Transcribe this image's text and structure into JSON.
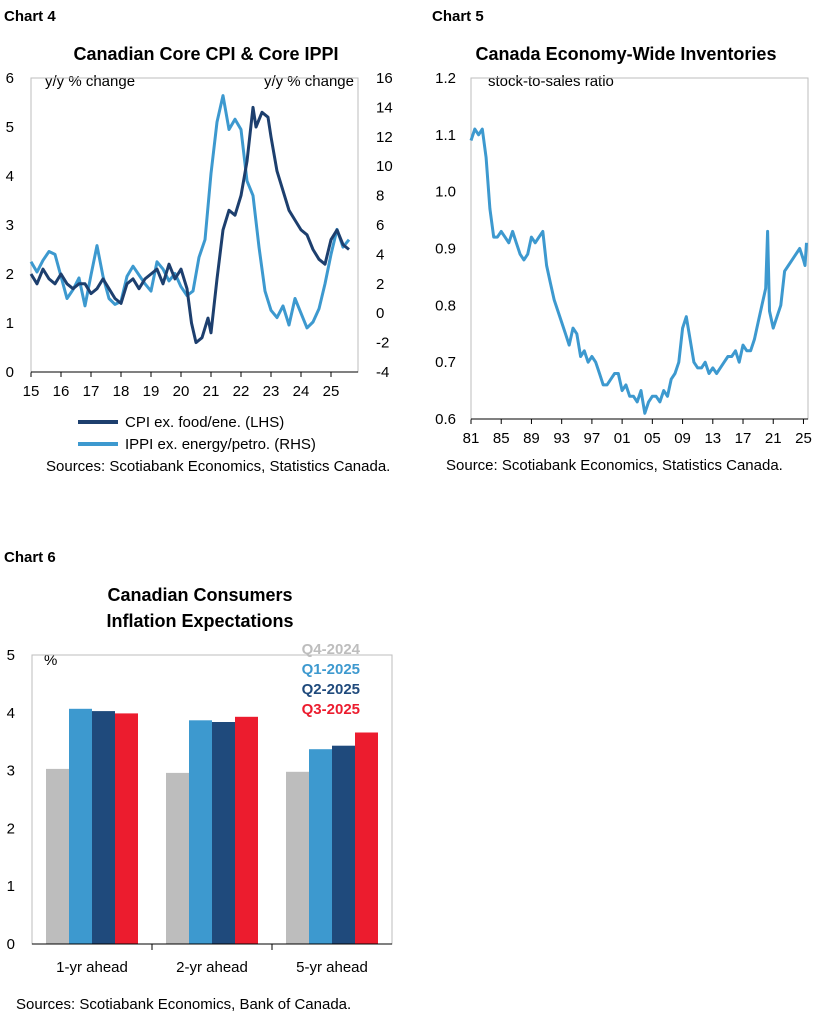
{
  "chart_data": [
    {
      "chart_label": "Chart 4",
      "type": "line",
      "title": "Canadian Core CPI & Core IPPI",
      "ylabel_left": "y/y % change",
      "ylabel_right": "y/y % change",
      "ylim_left": [
        0,
        6
      ],
      "ylim_right": [
        -4,
        16
      ],
      "yticks_left": [
        "0",
        "1",
        "2",
        "3",
        "4",
        "5",
        "6"
      ],
      "yticks_right": [
        "-4",
        "-2",
        "0",
        "2",
        "4",
        "6",
        "8",
        "10",
        "12",
        "14",
        "16"
      ],
      "xlim": [
        2015,
        2025.9
      ],
      "xtick_labels": [
        "15",
        "16",
        "17",
        "18",
        "19",
        "20",
        "21",
        "22",
        "23",
        "24",
        "25"
      ],
      "grid": false,
      "legend_position": "bottom",
      "series": [
        {
          "name": "CPI ex. food/ene. (LHS)",
          "color": "#1d3f6e",
          "axis": "left",
          "x": [
            2015.0,
            2015.2,
            2015.4,
            2015.6,
            2015.8,
            2016.0,
            2016.2,
            2016.4,
            2016.6,
            2016.8,
            2017.0,
            2017.2,
            2017.4,
            2017.6,
            2017.8,
            2018.0,
            2018.2,
            2018.4,
            2018.6,
            2018.8,
            2019.0,
            2019.2,
            2019.4,
            2019.6,
            2019.8,
            2020.0,
            2020.2,
            2020.35,
            2020.5,
            2020.7,
            2020.9,
            2021.0,
            2021.2,
            2021.4,
            2021.6,
            2021.8,
            2022.0,
            2022.2,
            2022.4,
            2022.5,
            2022.7,
            2022.9,
            2023.0,
            2023.2,
            2023.4,
            2023.6,
            2023.8,
            2024.0,
            2024.2,
            2024.4,
            2024.6,
            2024.8,
            2025.0,
            2025.2,
            2025.4,
            2025.6
          ],
          "values": [
            2.0,
            1.8,
            2.1,
            1.9,
            1.8,
            2.0,
            1.8,
            1.7,
            1.8,
            1.8,
            1.6,
            1.7,
            1.9,
            1.7,
            1.5,
            1.4,
            1.8,
            1.9,
            1.7,
            1.9,
            2.0,
            2.1,
            1.8,
            2.2,
            1.9,
            2.1,
            1.7,
            1.0,
            0.6,
            0.7,
            1.1,
            0.8,
            1.9,
            2.9,
            3.3,
            3.2,
            3.6,
            4.3,
            5.4,
            5.0,
            5.3,
            5.2,
            4.8,
            4.1,
            3.7,
            3.3,
            3.1,
            2.9,
            2.8,
            2.5,
            2.3,
            2.2,
            2.7,
            2.9,
            2.6,
            2.5
          ]
        },
        {
          "name": "IPPI ex. energy/petro. (RHS)",
          "color": "#3d99cf",
          "axis": "right",
          "x": [
            2015.0,
            2015.2,
            2015.4,
            2015.6,
            2015.8,
            2016.0,
            2016.2,
            2016.4,
            2016.6,
            2016.8,
            2017.0,
            2017.2,
            2017.4,
            2017.6,
            2017.8,
            2018.0,
            2018.2,
            2018.4,
            2018.6,
            2018.8,
            2019.0,
            2019.2,
            2019.4,
            2019.6,
            2019.8,
            2020.0,
            2020.2,
            2020.4,
            2020.6,
            2020.8,
            2021.0,
            2021.2,
            2021.4,
            2021.6,
            2021.8,
            2022.0,
            2022.2,
            2022.4,
            2022.6,
            2022.8,
            2023.0,
            2023.2,
            2023.4,
            2023.6,
            2023.8,
            2024.0,
            2024.2,
            2024.4,
            2024.6,
            2024.8,
            2025.0,
            2025.2,
            2025.4,
            2025.6
          ],
          "values": [
            3.5,
            2.8,
            3.6,
            4.2,
            4.0,
            2.5,
            1.0,
            1.6,
            2.4,
            0.5,
            2.6,
            4.6,
            2.5,
            1.0,
            0.6,
            0.8,
            2.5,
            3.2,
            2.6,
            2.0,
            1.5,
            3.5,
            3.0,
            2.2,
            2.7,
            1.8,
            1.2,
            1.5,
            3.8,
            5.0,
            9.5,
            13.0,
            14.8,
            12.5,
            13.2,
            12.5,
            9.0,
            8.0,
            4.5,
            1.5,
            0.2,
            -0.3,
            0.5,
            -0.8,
            1.0,
            0.0,
            -1.0,
            -0.6,
            0.3,
            2.0,
            4.0,
            5.7,
            4.5,
            5.0
          ]
        }
      ],
      "source": "Sources: Scotiabank Economics, Statistics Canada."
    },
    {
      "chart_label": "Chart 5",
      "type": "line",
      "title": "Canada Economy-Wide Inventories",
      "ylabel": "stock-to-sales ratio",
      "ylim": [
        0.6,
        1.2
      ],
      "yticks": [
        "0.6",
        "0.7",
        "0.8",
        "0.9",
        "1.0",
        "1.1",
        "1.2"
      ],
      "xlim": [
        1981,
        2025.6
      ],
      "xtick_labels": [
        "81",
        "85",
        "89",
        "93",
        "97",
        "01",
        "05",
        "09",
        "13",
        "17",
        "21",
        "25"
      ],
      "grid": false,
      "series": [
        {
          "name": "",
          "color": "#3d99cf",
          "x": [
            1981.0,
            1981.5,
            1982.0,
            1982.5,
            1983.0,
            1983.5,
            1984.0,
            1984.5,
            1985.0,
            1985.5,
            1986.0,
            1986.5,
            1987.0,
            1987.5,
            1988.0,
            1988.5,
            1989.0,
            1989.5,
            1990.0,
            1990.5,
            1991.0,
            1991.5,
            1992.0,
            1992.5,
            1993.0,
            1993.5,
            1994.0,
            1994.5,
            1995.0,
            1995.5,
            1996.0,
            1996.5,
            1997.0,
            1997.5,
            1998.0,
            1998.5,
            1999.0,
            1999.5,
            2000.0,
            2000.5,
            2001.0,
            2001.5,
            2002.0,
            2002.5,
            2003.0,
            2003.5,
            2004.0,
            2004.5,
            2005.0,
            2005.5,
            2006.0,
            2006.5,
            2007.0,
            2007.5,
            2008.0,
            2008.5,
            2009.0,
            2009.5,
            2010.0,
            2010.5,
            2011.0,
            2011.5,
            2012.0,
            2012.5,
            2013.0,
            2013.5,
            2014.0,
            2014.5,
            2015.0,
            2015.5,
            2016.0,
            2016.5,
            2017.0,
            2017.5,
            2018.0,
            2018.5,
            2019.0,
            2019.5,
            2020.0,
            2020.25,
            2020.5,
            2021.0,
            2021.5,
            2022.0,
            2022.5,
            2023.0,
            2023.5,
            2024.0,
            2024.5,
            2025.0,
            2025.2,
            2025.4
          ],
          "values": [
            1.09,
            1.11,
            1.1,
            1.11,
            1.06,
            0.97,
            0.92,
            0.92,
            0.93,
            0.92,
            0.91,
            0.93,
            0.91,
            0.89,
            0.88,
            0.89,
            0.92,
            0.91,
            0.92,
            0.93,
            0.87,
            0.84,
            0.81,
            0.79,
            0.77,
            0.75,
            0.73,
            0.76,
            0.75,
            0.71,
            0.72,
            0.7,
            0.71,
            0.7,
            0.68,
            0.66,
            0.66,
            0.67,
            0.68,
            0.68,
            0.65,
            0.66,
            0.64,
            0.64,
            0.63,
            0.65,
            0.61,
            0.63,
            0.64,
            0.64,
            0.63,
            0.65,
            0.64,
            0.67,
            0.68,
            0.7,
            0.76,
            0.78,
            0.74,
            0.7,
            0.69,
            0.69,
            0.7,
            0.68,
            0.69,
            0.68,
            0.69,
            0.7,
            0.71,
            0.71,
            0.72,
            0.7,
            0.73,
            0.72,
            0.72,
            0.74,
            0.77,
            0.8,
            0.83,
            0.93,
            0.79,
            0.76,
            0.78,
            0.8,
            0.86,
            0.87,
            0.88,
            0.89,
            0.9,
            0.88,
            0.87,
            0.91
          ]
        }
      ],
      "source": "Source: Scotiabank Economics, Statistics Canada."
    },
    {
      "chart_label": "Chart 6",
      "type": "bar",
      "title_lines": [
        "Canadian Consumers",
        "Inflation Expectations"
      ],
      "ylabel": "%",
      "ylim": [
        0,
        5
      ],
      "yticks": [
        "0",
        "1",
        "2",
        "3",
        "4",
        "5"
      ],
      "categories": [
        "1-yr ahead",
        "2-yr ahead",
        "5-yr ahead"
      ],
      "grid": false,
      "legend_position": "top-right",
      "series": [
        {
          "name": "Q4-2024",
          "color": "#bdbdbd",
          "values": [
            3.03,
            2.96,
            2.98
          ]
        },
        {
          "name": "Q1-2025",
          "color": "#3d99cf",
          "values": [
            4.07,
            3.87,
            3.37
          ]
        },
        {
          "name": "Q2-2025",
          "color": "#1f4a7c",
          "values": [
            4.03,
            3.84,
            3.43
          ]
        },
        {
          "name": "Q3-2025",
          "color": "#ec1c2e",
          "values": [
            3.99,
            3.93,
            3.66
          ]
        }
      ],
      "source": "Sources: Scotiabank Economics, Bank of Canada."
    }
  ]
}
